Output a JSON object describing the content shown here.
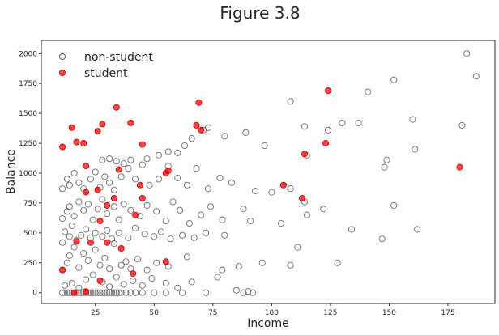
{
  "chart_data": {
    "type": "scatter",
    "title": "Figure 3.8",
    "xlabel": "Income",
    "ylabel": "Balance",
    "xlim": [
      2,
      195
    ],
    "ylim": [
      -90,
      2110
    ],
    "x_ticks": [
      25,
      50,
      75,
      100,
      125,
      150,
      175
    ],
    "y_ticks": [
      0,
      250,
      500,
      750,
      1000,
      1250,
      1500,
      1750,
      2000
    ],
    "grid": false,
    "legend_position": "top-left",
    "colors": {
      "non-student": "#555555",
      "student": "#ff0000"
    },
    "series": [
      {
        "name": "non-student",
        "marker": "open-circle",
        "points": [
          [
            11,
            0
          ],
          [
            12,
            0
          ],
          [
            13,
            0
          ],
          [
            14,
            0
          ],
          [
            15,
            0
          ],
          [
            16,
            0
          ],
          [
            17,
            0
          ],
          [
            18,
            0
          ],
          [
            19,
            0
          ],
          [
            20,
            0
          ],
          [
            21,
            0
          ],
          [
            22,
            0
          ],
          [
            23,
            0
          ],
          [
            24,
            0
          ],
          [
            25,
            0
          ],
          [
            26,
            0
          ],
          [
            27,
            0
          ],
          [
            28,
            0
          ],
          [
            29,
            0
          ],
          [
            30,
            0
          ],
          [
            31,
            0
          ],
          [
            32,
            0
          ],
          [
            33,
            0
          ],
          [
            34,
            0
          ],
          [
            35,
            0
          ],
          [
            36,
            0
          ],
          [
            38,
            0
          ],
          [
            40,
            0
          ],
          [
            42,
            0
          ],
          [
            45,
            0
          ],
          [
            50,
            0
          ],
          [
            55,
            0
          ],
          [
            62,
            0
          ],
          [
            72,
            0
          ],
          [
            88,
            0
          ],
          [
            92,
            0
          ],
          [
            12,
            60
          ],
          [
            15,
            80
          ],
          [
            18,
            40
          ],
          [
            21,
            110
          ],
          [
            24,
            150
          ],
          [
            28,
            90
          ],
          [
            31,
            50
          ],
          [
            34,
            130
          ],
          [
            37,
            70
          ],
          [
            41,
            100
          ],
          [
            45,
            60
          ],
          [
            49,
            120
          ],
          [
            55,
            80
          ],
          [
            60,
            40
          ],
          [
            66,
            90
          ],
          [
            77,
            130
          ],
          [
            85,
            20
          ],
          [
            90,
            10
          ],
          [
            11,
            190
          ],
          [
            13,
            250
          ],
          [
            14,
            310
          ],
          [
            16,
            380
          ],
          [
            18,
            210
          ],
          [
            20,
            330
          ],
          [
            22,
            270
          ],
          [
            25,
            360
          ],
          [
            27,
            230
          ],
          [
            29,
            290
          ],
          [
            31,
            200
          ],
          [
            33,
            410
          ],
          [
            36,
            230
          ],
          [
            38,
            260
          ],
          [
            40,
            200
          ],
          [
            43,
            280
          ],
          [
            47,
            190
          ],
          [
            51,
            250
          ],
          [
            56,
            220
          ],
          [
            64,
            300
          ],
          [
            79,
            190
          ],
          [
            86,
            220
          ],
          [
            96,
            250
          ],
          [
            108,
            230
          ],
          [
            111,
            380
          ],
          [
            128,
            250
          ],
          [
            147,
            450
          ],
          [
            11,
            420
          ],
          [
            12,
            510
          ],
          [
            14,
            470
          ],
          [
            15,
            560
          ],
          [
            17,
            440
          ],
          [
            19,
            480
          ],
          [
            21,
            530
          ],
          [
            23,
            460
          ],
          [
            25,
            500
          ],
          [
            28,
            470
          ],
          [
            30,
            520
          ],
          [
            32,
            450
          ],
          [
            35,
            500
          ],
          [
            39,
            460
          ],
          [
            42,
            540
          ],
          [
            46,
            490
          ],
          [
            50,
            470
          ],
          [
            53,
            510
          ],
          [
            57,
            450
          ],
          [
            62,
            480
          ],
          [
            67,
            460
          ],
          [
            72,
            500
          ],
          [
            80,
            480
          ],
          [
            91,
            600
          ],
          [
            104,
            580
          ],
          [
            115,
            650
          ],
          [
            134,
            530
          ],
          [
            162,
            530
          ],
          [
            11,
            620
          ],
          [
            13,
            680
          ],
          [
            14,
            720
          ],
          [
            16,
            640
          ],
          [
            18,
            760
          ],
          [
            20,
            690
          ],
          [
            22,
            740
          ],
          [
            24,
            610
          ],
          [
            26,
            700
          ],
          [
            28,
            780
          ],
          [
            30,
            660
          ],
          [
            33,
            720
          ],
          [
            35,
            610
          ],
          [
            37,
            740
          ],
          [
            40,
            690
          ],
          [
            44,
            640
          ],
          [
            47,
            730
          ],
          [
            51,
            680
          ],
          [
            55,
            600
          ],
          [
            58,
            760
          ],
          [
            61,
            690
          ],
          [
            65,
            580
          ],
          [
            70,
            650
          ],
          [
            74,
            720
          ],
          [
            79,
            610
          ],
          [
            88,
            700
          ],
          [
            100,
            840
          ],
          [
            114,
            760
          ],
          [
            122,
            700
          ],
          [
            11,
            870
          ],
          [
            13,
            950
          ],
          [
            14,
            900
          ],
          [
            16,
            1000
          ],
          [
            18,
            920
          ],
          [
            20,
            870
          ],
          [
            23,
            950
          ],
          [
            25,
            1010
          ],
          [
            27,
            880
          ],
          [
            29,
            970
          ],
          [
            31,
            920
          ],
          [
            33,
            860
          ],
          [
            36,
            970
          ],
          [
            39,
            1040
          ],
          [
            42,
            950
          ],
          [
            45,
            1070
          ],
          [
            48,
            900
          ],
          [
            52,
            950
          ],
          [
            56,
            1060
          ],
          [
            60,
            960
          ],
          [
            64,
            900
          ],
          [
            68,
            1040
          ],
          [
            73,
            870
          ],
          [
            78,
            960
          ],
          [
            83,
            920
          ],
          [
            93,
            850
          ],
          [
            108,
            870
          ],
          [
            28,
            1110
          ],
          [
            31,
            1120
          ],
          [
            34,
            1100
          ],
          [
            37,
            1080
          ],
          [
            40,
            1110
          ],
          [
            47,
            1120
          ],
          [
            52,
            1150
          ],
          [
            56,
            1180
          ],
          [
            60,
            1170
          ],
          [
            63,
            1230
          ],
          [
            66,
            1290
          ],
          [
            71,
            1360
          ],
          [
            73,
            1380
          ],
          [
            80,
            1310
          ],
          [
            89,
            1340
          ],
          [
            97,
            1230
          ],
          [
            108,
            1600
          ],
          [
            114,
            1390
          ],
          [
            115,
            1150
          ],
          [
            124,
            1360
          ],
          [
            130,
            1420
          ],
          [
            137,
            1420
          ],
          [
            141,
            1680
          ],
          [
            152,
            1780
          ],
          [
            148,
            1050
          ],
          [
            149,
            1110
          ],
          [
            160,
            1450
          ],
          [
            161,
            1200
          ],
          [
            152,
            730
          ],
          [
            183,
            2000
          ],
          [
            187,
            1810
          ],
          [
            181,
            1400
          ]
        ]
      },
      {
        "name": "student",
        "marker": "filled-circle",
        "points": [
          [
            11,
            1220
          ],
          [
            15,
            1380
          ],
          [
            17,
            1260
          ],
          [
            20,
            1250
          ],
          [
            21,
            1060
          ],
          [
            21,
            840
          ],
          [
            26,
            1350
          ],
          [
            28,
            1410
          ],
          [
            34,
            1550
          ],
          [
            35,
            1030
          ],
          [
            40,
            1420
          ],
          [
            45,
            1240
          ],
          [
            44,
            900
          ],
          [
            45,
            790
          ],
          [
            42,
            650
          ],
          [
            33,
            790
          ],
          [
            30,
            730
          ],
          [
            27,
            600
          ],
          [
            26,
            860
          ],
          [
            17,
            430
          ],
          [
            23,
            420
          ],
          [
            30,
            420
          ],
          [
            36,
            370
          ],
          [
            41,
            160
          ],
          [
            55,
            260
          ],
          [
            55,
            1000
          ],
          [
            56,
            1020
          ],
          [
            68,
            1400
          ],
          [
            70,
            1360
          ],
          [
            69,
            1590
          ],
          [
            105,
            900
          ],
          [
            113,
            790
          ],
          [
            114,
            1160
          ],
          [
            123,
            1250
          ],
          [
            124,
            1690
          ],
          [
            180,
            1050
          ],
          [
            11,
            190
          ],
          [
            16,
            0
          ],
          [
            21,
            10
          ],
          [
            27,
            100
          ]
        ]
      }
    ]
  }
}
